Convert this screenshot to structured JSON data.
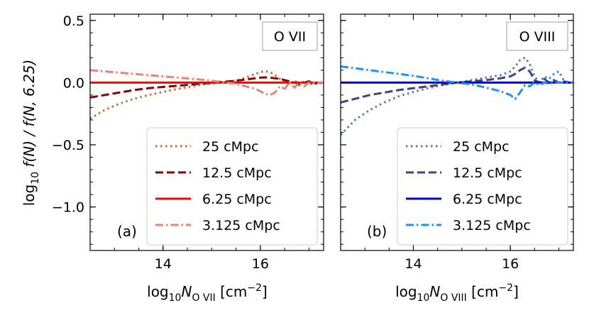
{
  "chart_data": [
    {
      "type": "line",
      "panel_id": "a",
      "ion_label": "O VII",
      "panel_letter": "(a)",
      "xlabel": {
        "base": "log",
        "sub1": "10",
        "var": "N",
        "sub2": "O VII",
        "unit_pre": "[cm",
        "unit_sup": "−2",
        "unit_post": "]"
      },
      "ylabel": {
        "pre": "log",
        "sub": "10",
        "expr": " f(N) / f(N, 6.25)"
      },
      "xlim": [
        12.5,
        17.3
      ],
      "ylim": [
        -1.35,
        0.55
      ],
      "xticks": [
        14,
        16
      ],
      "xtick_labels": [
        "14",
        "16"
      ],
      "yticks": [
        0.5,
        0.0,
        -0.5,
        -1.0
      ],
      "ytick_labels": [
        "0.5",
        "0.0",
        "−0.5",
        "−1.0"
      ],
      "legend_position": "lower-right",
      "series": [
        {
          "name": "25 cMpc",
          "style": "dotted",
          "color": "#d2691e",
          "x": [
            12.5,
            12.8,
            13.1,
            13.4,
            13.7,
            14.0,
            14.3,
            14.6,
            14.9,
            15.2,
            15.5,
            15.7,
            15.9,
            16.0,
            16.1,
            16.2,
            16.3,
            16.4,
            16.5,
            16.6,
            16.7,
            16.8,
            16.9,
            17.0,
            17.1,
            17.2,
            17.3
          ],
          "y": [
            -0.29,
            -0.22,
            -0.17,
            -0.13,
            -0.1,
            -0.075,
            -0.05,
            -0.03,
            -0.01,
            0.0,
            0.015,
            0.04,
            0.07,
            0.085,
            0.092,
            0.085,
            0.06,
            0.03,
            0.0,
            -0.015,
            0.02,
            -0.02,
            0.01,
            -0.02,
            0.0,
            -0.01,
            0.0
          ]
        },
        {
          "name": "12.5 cMpc",
          "style": "dashed",
          "color": "#8b0000",
          "x": [
            12.5,
            12.8,
            13.1,
            13.4,
            13.7,
            14.0,
            14.3,
            14.6,
            14.9,
            15.2,
            15.5,
            15.7,
            15.9,
            16.0,
            16.1,
            16.2,
            16.3,
            16.4,
            16.5,
            16.6,
            16.7,
            16.8,
            16.9,
            17.0,
            17.1,
            17.2,
            17.3
          ],
          "y": [
            -0.12,
            -0.1,
            -0.08,
            -0.06,
            -0.045,
            -0.035,
            -0.025,
            -0.015,
            -0.005,
            0.005,
            0.015,
            0.025,
            0.035,
            0.04,
            0.042,
            0.04,
            0.035,
            0.03,
            0.02,
            0.01,
            0.0,
            -0.01,
            0.0,
            0.01,
            -0.01,
            0.0,
            0.0
          ]
        },
        {
          "name": "6.25 cMpc",
          "style": "solid",
          "color": "#ff0000",
          "x": [
            12.5,
            17.3
          ],
          "y": [
            0.0,
            0.0
          ]
        },
        {
          "name": "3.125 cMpc",
          "style": "dashdot",
          "color": "#f08070",
          "x": [
            12.5,
            12.8,
            13.1,
            13.4,
            13.7,
            14.0,
            14.3,
            14.6,
            14.9,
            15.2,
            15.5,
            15.7,
            15.9,
            16.0,
            16.1,
            16.2,
            16.3,
            16.4,
            16.5,
            16.6,
            16.7,
            16.8,
            16.9,
            17.0,
            17.1,
            17.2,
            17.3
          ],
          "y": [
            0.1,
            0.09,
            0.08,
            0.07,
            0.06,
            0.05,
            0.04,
            0.03,
            0.02,
            0.005,
            -0.01,
            -0.03,
            -0.05,
            -0.07,
            -0.09,
            -0.1,
            -0.08,
            -0.03,
            -0.05,
            0.0,
            -0.04,
            0.0,
            -0.03,
            0.0,
            0.0,
            0.0,
            0.0
          ]
        }
      ]
    },
    {
      "type": "line",
      "panel_id": "b",
      "ion_label": "O VIII",
      "panel_letter": "(b)",
      "xlabel": {
        "base": "log",
        "sub1": "10",
        "var": "N",
        "sub2": "O VIII",
        "unit_pre": "[cm",
        "unit_sup": "−2",
        "unit_post": "]"
      },
      "xlim": [
        12.5,
        17.3
      ],
      "ylim": [
        -1.35,
        0.55
      ],
      "xticks": [
        14,
        16
      ],
      "xtick_labels": [
        "14",
        "16"
      ],
      "yticks": [
        0.5,
        0.0,
        -0.5,
        -1.0
      ],
      "legend_position": "lower-right",
      "series": [
        {
          "name": "25 cMpc",
          "style": "dotted",
          "color": "#4682b4",
          "x": [
            12.5,
            12.8,
            13.1,
            13.4,
            13.7,
            14.0,
            14.3,
            14.6,
            14.9,
            15.2,
            15.5,
            15.8,
            16.0,
            16.1,
            16.2,
            16.3,
            16.4,
            16.5,
            16.6,
            16.7,
            16.8,
            16.9,
            17.0,
            17.1,
            17.2,
            17.3
          ],
          "y": [
            -0.42,
            -0.3,
            -0.22,
            -0.16,
            -0.11,
            -0.075,
            -0.045,
            -0.02,
            0.0,
            0.02,
            0.04,
            0.06,
            0.09,
            0.13,
            0.18,
            0.2,
            0.15,
            0.05,
            0.0,
            0.05,
            0.03,
            0.07,
            0.09,
            0.02,
            0.0,
            0.0
          ]
        },
        {
          "name": "12.5 cMpc",
          "style": "dashed",
          "color": "#483d8b",
          "x": [
            12.5,
            12.8,
            13.1,
            13.4,
            13.7,
            14.0,
            14.3,
            14.6,
            14.9,
            15.2,
            15.5,
            15.8,
            16.0,
            16.1,
            16.2,
            16.3,
            16.4,
            16.5,
            16.6,
            16.7,
            16.8,
            16.9,
            17.0,
            17.1,
            17.2,
            17.3
          ],
          "y": [
            -0.16,
            -0.13,
            -0.1,
            -0.08,
            -0.06,
            -0.045,
            -0.03,
            -0.015,
            0.0,
            0.01,
            0.02,
            0.035,
            0.05,
            0.07,
            0.1,
            0.12,
            0.09,
            0.02,
            0.0,
            0.03,
            0.0,
            0.02,
            0.0,
            0.01,
            0.0,
            0.0
          ]
        },
        {
          "name": "6.25 cMpc",
          "style": "solid",
          "color": "#0000e0",
          "x": [
            12.5,
            17.3
          ],
          "y": [
            0.0,
            0.0
          ]
        },
        {
          "name": "3.125 cMpc",
          "style": "dashdot",
          "color": "#1e90ff",
          "x": [
            12.5,
            12.8,
            13.1,
            13.4,
            13.7,
            14.0,
            14.3,
            14.6,
            14.9,
            15.2,
            15.5,
            15.8,
            16.0,
            16.1,
            16.2,
            16.3,
            16.4,
            16.5,
            16.6,
            16.7,
            16.8,
            16.9,
            17.0,
            17.1,
            17.2,
            17.3
          ],
          "y": [
            0.13,
            0.115,
            0.1,
            0.085,
            0.07,
            0.055,
            0.035,
            0.015,
            0.0,
            -0.015,
            -0.04,
            -0.07,
            -0.1,
            -0.13,
            -0.08,
            -0.02,
            -0.03,
            0.0,
            -0.02,
            0.0,
            -0.01,
            0.0,
            0.0,
            0.0,
            0.0,
            0.0
          ]
        }
      ]
    }
  ]
}
